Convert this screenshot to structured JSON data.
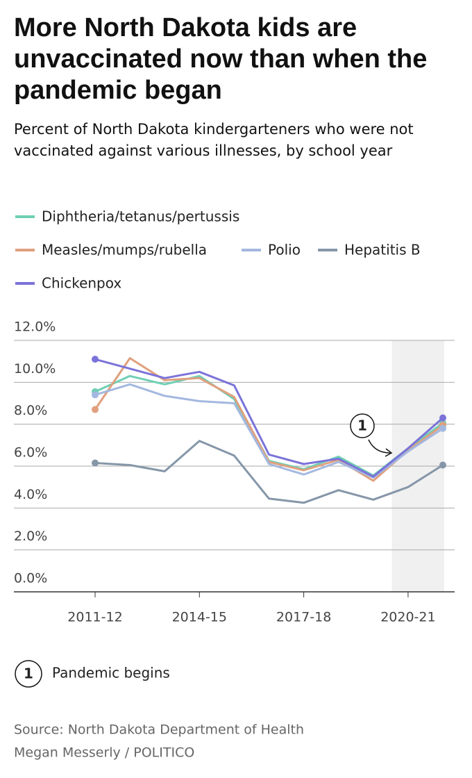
{
  "chart_data": {
    "type": "line",
    "title": "More North Dakota kids are unvaccinated now than when the pandemic began",
    "subtitle": "Percent of North Dakota kindergarteners who were not vaccinated against various illnesses, by school year",
    "categories": [
      "2011-12",
      null,
      null,
      "2014-15",
      null,
      null,
      "2017-18",
      null,
      null,
      "2020-21",
      null
    ],
    "series": [
      {
        "name": "Diphtheria/tetanus/pertussis",
        "color": "#6fcfb5",
        "values": [
          9.55,
          10.3,
          9.9,
          10.3,
          9.2,
          6.25,
          5.85,
          6.45,
          5.55,
          6.85,
          8.05
        ]
      },
      {
        "name": "Measles/mumps/rubella",
        "color": "#e0a07e",
        "values": [
          8.7,
          11.15,
          10.1,
          10.2,
          9.3,
          6.2,
          5.8,
          6.3,
          5.3,
          6.75,
          7.95
        ]
      },
      {
        "name": "Polio",
        "color": "#a3b8e0",
        "values": [
          9.4,
          9.9,
          9.35,
          9.1,
          9.0,
          6.1,
          5.6,
          6.2,
          5.45,
          6.7,
          7.8
        ]
      },
      {
        "name": "Hepatitis B",
        "color": "#8596a8",
        "values": [
          6.15,
          6.05,
          5.75,
          7.2,
          6.5,
          4.45,
          4.25,
          4.85,
          4.4,
          5.0,
          6.05
        ]
      },
      {
        "name": "Chickenpox",
        "color": "#7b73d9",
        "values": [
          11.1,
          10.65,
          10.2,
          10.5,
          9.85,
          6.55,
          6.1,
          6.35,
          5.5,
          6.85,
          8.3
        ]
      }
    ],
    "ylim": [
      0,
      12
    ],
    "yticks": [
      {
        "value": 0,
        "label": "0.0%"
      },
      {
        "value": 2,
        "label": "2.0%"
      },
      {
        "value": 4,
        "label": "4.0%"
      },
      {
        "value": 6,
        "label": "6.0%"
      },
      {
        "value": 8,
        "label": "8.0%"
      },
      {
        "value": 10,
        "label": "10.0%"
      },
      {
        "value": 12,
        "label": "12.0%"
      }
    ],
    "grid": true,
    "annotations": [
      {
        "label": "1",
        "text": "Pandemic begins"
      }
    ],
    "source": "Source: North Dakota Department of Health",
    "credit": "Megan Messerly / POLITICO"
  }
}
